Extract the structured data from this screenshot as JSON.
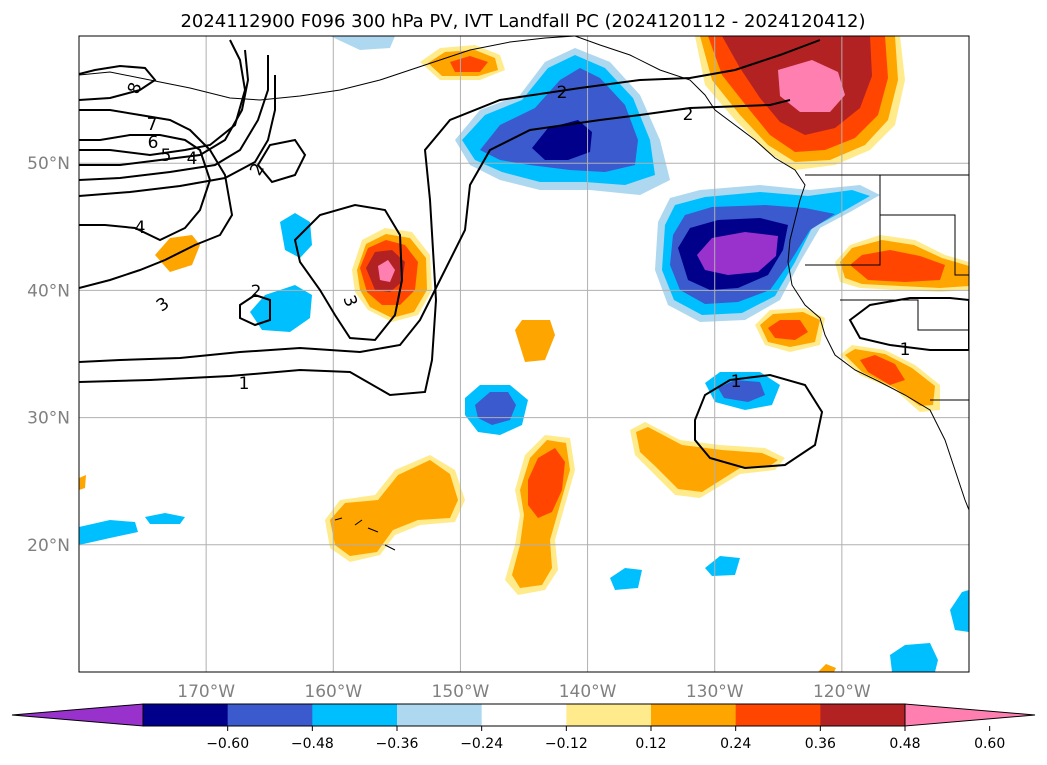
{
  "title": "2024112900 F096 300 hPa PV, IVT Landfall PC (2024120112 - 2024120412)",
  "map": {
    "lon_range": [
      -180,
      -110
    ],
    "lat_range": [
      10,
      60
    ],
    "lon_ticks": [
      {
        "value": -170,
        "label": "170°W"
      },
      {
        "value": -160,
        "label": "160°W"
      },
      {
        "value": -150,
        "label": "150°W"
      },
      {
        "value": -140,
        "label": "140°W"
      },
      {
        "value": -130,
        "label": "130°W"
      },
      {
        "value": -120,
        "label": "120°W"
      }
    ],
    "lat_ticks": [
      {
        "value": 50,
        "label": "50°N"
      },
      {
        "value": 40,
        "label": "40°N"
      },
      {
        "value": 30,
        "label": "30°N"
      },
      {
        "value": 20,
        "label": "20°N"
      }
    ],
    "gridlines": true,
    "contour_labels": [
      "8",
      "7",
      "6",
      "5",
      "4",
      "4",
      "3",
      "3",
      "2",
      "2",
      "2",
      "2",
      "1",
      "1",
      "1"
    ]
  },
  "colorbar": {
    "orientation": "horizontal",
    "extend": "both",
    "colors": [
      "#9932cc",
      "#00008b",
      "#3a5acd",
      "#00bfff",
      "#add8f0",
      "#ffffff",
      "#ffeb8c",
      "#ffa500",
      "#ff4500",
      "#b22222",
      "#ff80b0"
    ],
    "tick_labels": [
      "−0.60",
      "−0.48",
      "−0.36",
      "−0.24",
      "−0.12",
      "0.12",
      "0.24",
      "0.36",
      "0.48",
      "0.60"
    ],
    "tick_values": [
      -0.6,
      -0.48,
      -0.36,
      -0.24,
      -0.12,
      0.12,
      0.24,
      0.36,
      0.48,
      0.6
    ]
  }
}
